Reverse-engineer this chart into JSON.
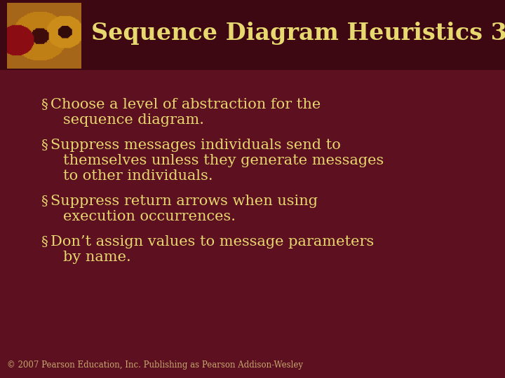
{
  "bg_color": "#5c1020",
  "header_bg_color": "#3d0812",
  "title": "Sequence Diagram Heuristics 3",
  "title_color": "#e8d870",
  "title_fontsize": 24,
  "bullet_color": "#e8d870",
  "bullet_fontsize": 15,
  "bullets": [
    [
      "Choose a level of abstraction for the",
      "sequence diagram."
    ],
    [
      "Suppress messages individuals send to",
      "themselves unless they generate messages",
      "to other individuals."
    ],
    [
      "Suppress return arrows when using",
      "execution occurrences."
    ],
    [
      "Don’t assign values to message parameters",
      "by name."
    ]
  ],
  "footer": "© 2007 Pearson Education, Inc. Publishing as Pearson Addison-Wesley",
  "footer_color": "#c8a870",
  "footer_fontsize": 8.5
}
